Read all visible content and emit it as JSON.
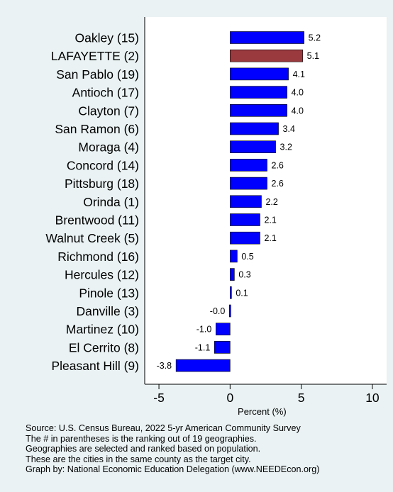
{
  "chart_data": {
    "type": "bar",
    "orientation": "horizontal",
    "title": "",
    "xlabel": "Percent (%)",
    "ylabel": "",
    "xlim": [
      -6,
      11
    ],
    "xticks": [
      -5,
      0,
      5,
      10
    ],
    "tick_labels": [
      "-5",
      "0",
      "5",
      "10"
    ],
    "grid": false,
    "categories": [
      "Oakley (15)",
      "LAFAYETTE  (2)",
      "San Pablo (19)",
      "Antioch (17)",
      "Clayton  (7)",
      "San Ramon  (6)",
      "Moraga  (4)",
      "Concord (14)",
      "Pittsburg (18)",
      "Orinda  (1)",
      "Brentwood (11)",
      "Walnut Creek  (5)",
      "Richmond (16)",
      "Hercules (12)",
      "Pinole (13)",
      "Danville  (3)",
      "Martinez (10)",
      "El Cerrito  (8)",
      "Pleasant Hill  (9)"
    ],
    "values": [
      5.2,
      5.1,
      4.1,
      4.0,
      4.0,
      3.4,
      3.2,
      2.6,
      2.6,
      2.2,
      2.1,
      2.1,
      0.5,
      0.3,
      0.1,
      -0.04,
      -1.0,
      -1.1,
      -3.8
    ],
    "value_labels": [
      "5.2",
      "5.1",
      "4.1",
      "4.0",
      "4.0",
      "3.4",
      "3.2",
      "2.6",
      "2.6",
      "2.2",
      "2.1",
      "2.1",
      "0.5",
      "0.3",
      "0.1",
      "-0.0",
      "-1.0",
      "-1.1",
      "-3.8"
    ],
    "highlight_index": 1,
    "colors": {
      "bar": "#0000ff",
      "highlight": "#9a3a3f",
      "plot_bg": "#ffffff",
      "page_bg": "#eaf2f3"
    }
  },
  "notes": [
    "Source: U.S. Census Bureau, 2022 5-yr American Community Survey",
    "The # in parentheses is the ranking out of 19 geographies.",
    "Geographies are selected and ranked based on population.",
    "These are the cities in the same county as the target city.",
    "Graph by: National Economic Education Delegation (www.NEEDEcon.org)"
  ]
}
